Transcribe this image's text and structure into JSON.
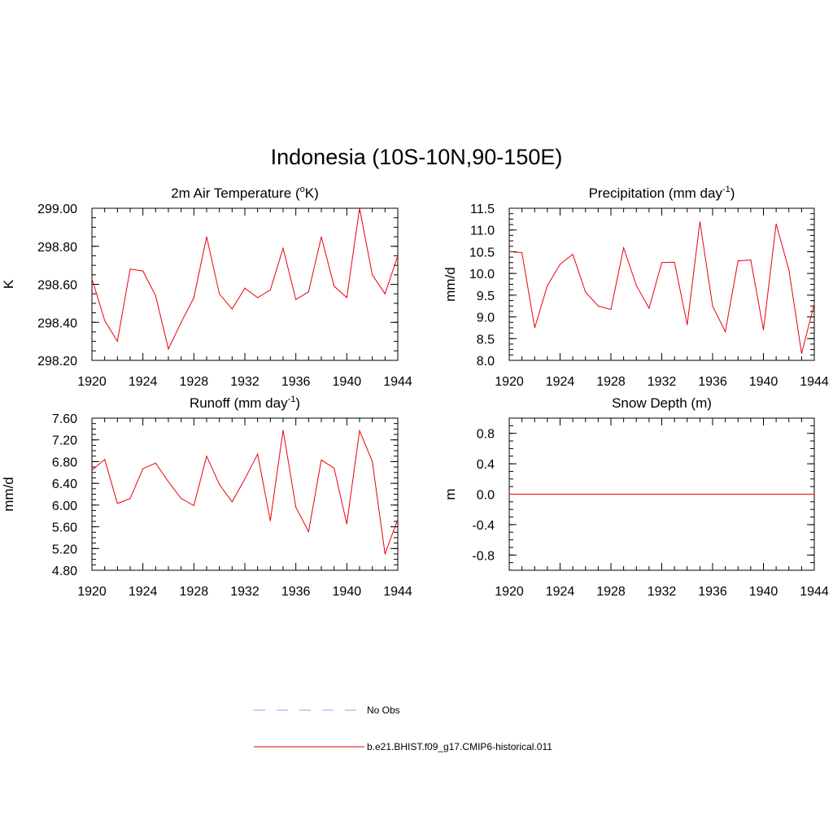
{
  "title": "Indonesia (10S-10N,90-150E)",
  "colors": {
    "series": "#e8000b",
    "obs": "#9999ff",
    "axis": "#000000"
  },
  "legend": {
    "obs_label": "No Obs",
    "series_label": "b.e21.BHIST.f09_g17.CMIP6-historical.011"
  },
  "chart_data": [
    {
      "id": "tas",
      "type": "line",
      "title_main": "2m Air Temperature (",
      "title_sup1": "o",
      "title_tail": "K)",
      "ylabel": "K",
      "xlim": [
        1920,
        1944
      ],
      "ylim": [
        298.2,
        299.0
      ],
      "xticks": [
        "1920",
        "1924",
        "1928",
        "1932",
        "1936",
        "1940",
        "1944"
      ],
      "yticks": [
        "298.20",
        "298.40",
        "298.60",
        "298.80",
        "299.00"
      ],
      "x": [
        1920,
        1921,
        1922,
        1923,
        1924,
        1925,
        1926,
        1927,
        1928,
        1929,
        1930,
        1931,
        1932,
        1933,
        1934,
        1935,
        1936,
        1937,
        1938,
        1939,
        1940,
        1941,
        1942,
        1943,
        1944
      ],
      "values": [
        298.63,
        298.41,
        298.3,
        298.68,
        298.67,
        298.54,
        298.26,
        298.4,
        298.53,
        298.85,
        298.55,
        298.47,
        298.58,
        298.53,
        298.57,
        298.79,
        298.52,
        298.56,
        298.85,
        298.59,
        298.53,
        299.0,
        298.65,
        298.55,
        298.75
      ]
    },
    {
      "id": "prect",
      "type": "line",
      "title_main": "Precipitation (mm day",
      "title_sup1": "-1",
      "title_tail": ")",
      "ylabel": "mm/d",
      "xlim": [
        1920,
        1944
      ],
      "ylim": [
        8.0,
        11.5
      ],
      "xticks": [
        "1920",
        "1924",
        "1928",
        "1932",
        "1936",
        "1940",
        "1944"
      ],
      "yticks": [
        "8.0",
        "8.5",
        "9.0",
        "9.5",
        "10.0",
        "10.5",
        "11.0",
        "11.5"
      ],
      "x": [
        1920,
        1921,
        1922,
        1923,
        1924,
        1925,
        1926,
        1927,
        1928,
        1929,
        1930,
        1931,
        1932,
        1933,
        1934,
        1935,
        1936,
        1937,
        1938,
        1939,
        1940,
        1941,
        1942,
        1943,
        1944
      ],
      "values": [
        10.5,
        10.48,
        8.75,
        9.72,
        10.21,
        10.44,
        9.57,
        9.25,
        9.17,
        10.59,
        9.72,
        9.2,
        10.25,
        10.26,
        8.82,
        11.19,
        9.25,
        8.66,
        10.29,
        10.31,
        8.7,
        11.14,
        10.08,
        8.16,
        9.3
      ]
    },
    {
      "id": "runoff",
      "type": "line",
      "title_main": "Runoff (mm day",
      "title_sup1": "-1",
      "title_tail": ")",
      "ylabel": "mm/d",
      "xlim": [
        1920,
        1944
      ],
      "ylim": [
        4.8,
        7.6
      ],
      "xticks": [
        "1920",
        "1924",
        "1928",
        "1932",
        "1936",
        "1940",
        "1944"
      ],
      "yticks": [
        "4.80",
        "5.20",
        "5.60",
        "6.00",
        "6.40",
        "6.80",
        "7.20",
        "7.60"
      ],
      "x": [
        1920,
        1921,
        1922,
        1923,
        1924,
        1925,
        1926,
        1927,
        1928,
        1929,
        1930,
        1931,
        1932,
        1933,
        1934,
        1935,
        1936,
        1937,
        1938,
        1939,
        1940,
        1941,
        1942,
        1943,
        1944
      ],
      "values": [
        6.64,
        6.84,
        6.03,
        6.12,
        6.67,
        6.77,
        6.43,
        6.12,
        5.99,
        6.9,
        6.38,
        6.06,
        6.48,
        6.94,
        5.71,
        7.38,
        5.96,
        5.51,
        6.83,
        6.68,
        5.65,
        7.37,
        6.8,
        5.1,
        5.74
      ]
    },
    {
      "id": "snowdp",
      "type": "line",
      "title_main": "Snow Depth (m)",
      "title_sup1": "",
      "title_tail": "",
      "ylabel": "m",
      "xlim": [
        1920,
        1944
      ],
      "ylim": [
        -1.0,
        1.0
      ],
      "xticks": [
        "1920",
        "1924",
        "1928",
        "1932",
        "1936",
        "1940",
        "1944"
      ],
      "yticks": [
        "-0.8",
        "-0.4",
        "0.0",
        "0.4",
        "0.8"
      ],
      "ytick_values": [
        -0.8,
        -0.4,
        0.0,
        0.4,
        0.8
      ],
      "x": [
        1920,
        1921,
        1922,
        1923,
        1924,
        1925,
        1926,
        1927,
        1928,
        1929,
        1930,
        1931,
        1932,
        1933,
        1934,
        1935,
        1936,
        1937,
        1938,
        1939,
        1940,
        1941,
        1942,
        1943,
        1944
      ],
      "values": [
        0,
        0,
        0,
        0,
        0,
        0,
        0,
        0,
        0,
        0,
        0,
        0,
        0,
        0,
        0,
        0,
        0,
        0,
        0,
        0,
        0,
        0,
        0,
        0,
        0
      ]
    }
  ]
}
